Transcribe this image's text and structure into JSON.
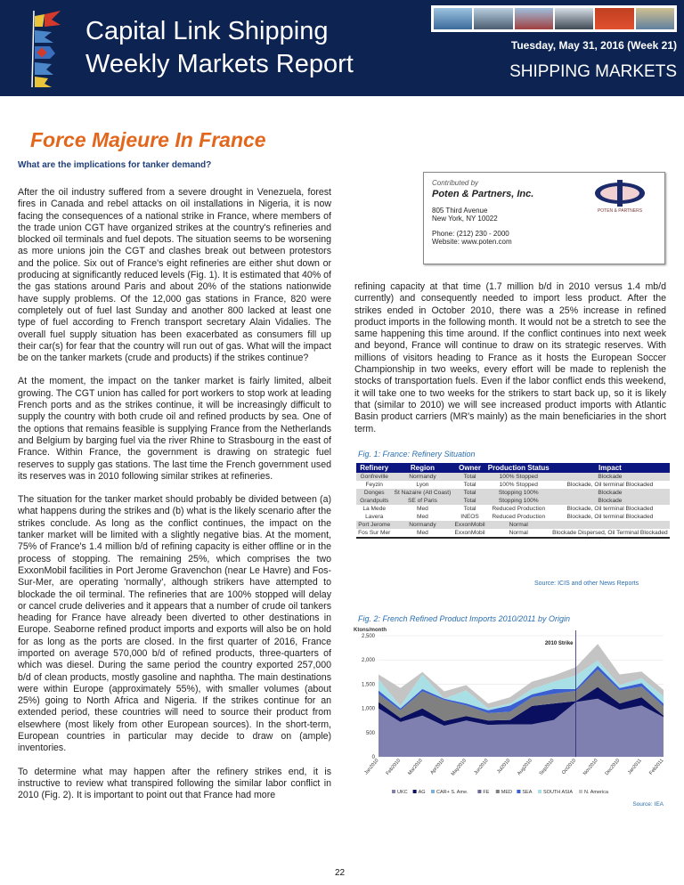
{
  "header": {
    "title_line1": "Capital Link Shipping",
    "title_line2": "Weekly Markets Report",
    "date": "Tuesday, May 31, 2016 (Week 21)",
    "section": "SHIPPING MARKETS"
  },
  "article": {
    "title": "Force Majeure In France",
    "subtitle": "What are the implications for tanker demand?",
    "left_paragraphs": [
      "After the oil industry suffered from a severe drought in Venezuela, forest fires in Canada and rebel attacks on oil installations in Nigeria, it is now facing the consequences of a national strike in France, where members of the trade union CGT have organized strikes at the country's refineries and blocked oil terminals and fuel depots. The situation seems to be worsening as more unions join the CGT and clashes break out between protestors and the police. Six out of France's eight refineries are either shut down or producing at significantly reduced levels (Fig. 1). It is estimated that 40% of the gas stations around Paris and about 20% of the stations nationwide have supply problems. Of the 12,000 gas stations in France, 820 were completely out of fuel last Sunday and another 800 lacked at least one type of fuel according to French transport secretary Alain Vidalies. The overall fuel supply situation has been exacerbated as consumers fill up their car(s) for fear that the country will run out of gas. What will the impact be on the tanker markets (crude and products) if the strikes continue?",
      "At the moment, the impact on the tanker market is fairly limited, albeit growing. The CGT union has called for port workers to stop work at leading French ports and as the strikes continue, it will be increasingly difficult to supply the country with both crude oil and refined products by sea. One of the options that remains feasible is supplying France from the Netherlands and Belgium by barging fuel via the river Rhine to Strasbourg in the east of France. Within France, the government is drawing on strategic fuel reserves to supply gas stations. The last time the French government used its reserves was in 2010 following similar strikes at refineries.",
      "The situation for the tanker market should probably be divided between (a) what happens during the strikes and (b) what is the likely scenario after the strikes conclude. As long as the conflict continues, the impact on the tanker market will be limited with a slightly negative bias. At the moment, 75% of France's 1.4 million b/d of refining capacity is either offline or in the process of stopping. The remaining 25%, which comprises the two ExxonMobil facilities in Port Jerome Gravenchon (near Le Havre) and Fos-Sur-Mer, are operating 'normally', although strikers have attempted to blockade the oil terminal. The refineries that are 100% stopped will delay or cancel crude deliveries and it appears that a number of crude oil tankers heading for France have already been diverted to other destinations in Europe. Seaborne refined product imports and exports will also be on hold for as long as the ports are closed. In the first quarter of 2016, France imported on average 570,000 b/d of refined products, three-quarters of which was diesel. During the same period the country exported 257,000 b/d of clean products, mostly gasoline and naphtha. The main destinations were within Europe (approximately 55%), with smaller volumes (about 25%) going to North Africa and Nigeria. If the strikes continue for an extended period, these countries will need to source their product from elsewhere (most likely from other European sources). In the short-term, European countries in particular may decide to draw on (ample) inventories.",
      "To determine what may happen after the refinery strikes end, it is instructive to review what transpired following the similar labor conflict in 2010 (Fig. 2). It is important to point out that France had more"
    ],
    "right_paragraph": "refining capacity at that time (1.7 million b/d in 2010 versus 1.4 mb/d currently) and consequently needed to import less product. After the strikes ended in October 2010, there was a 25% increase in refined product imports in the following month. It would not be a stretch to see the same happening this time around. If the conflict continues into next week and beyond, France will continue to draw on its strategic reserves. With millions of visitors heading to France as it hosts the European Soccer Championship in two weeks, every effort will be made to replenish the stocks of transportation fuels. Even if the labor conflict ends this weekend, it will take one to two weeks for the strikers to start back up, so it is likely that (similar to 2010) we will see increased product imports with Atlantic Basin product carriers (MR's mainly) as the main beneficiaries in the short term."
  },
  "contributor": {
    "label": "Contributed by",
    "name": "Poten & Partners, Inc.",
    "address1": "805 Third Avenue",
    "address2": "New York, NY 10022",
    "phone": "Phone: (212) 230 - 2000",
    "website": "Website: www.poten.com",
    "logo_text": "POTEN & PARTNERS"
  },
  "fig1": {
    "title": "Fig. 1: France: Refinery Situation",
    "source": "Source: ICIS and other News Reports",
    "headers": [
      "Refinery",
      "Region",
      "Owner",
      "Production Status",
      "Impact"
    ],
    "rows": [
      [
        "Gonfreville",
        "Normandy",
        "Total",
        "100% Stopped",
        "Blockade"
      ],
      [
        "Feyzin",
        "Lyon",
        "Total",
        "100% Stopped",
        "Blockade, Oil terminal Blockaded"
      ],
      [
        "Donges",
        "St Nazaire (Atl Coast)",
        "Total",
        "Stopping 100%",
        "Blockade"
      ],
      [
        "Grandpuits",
        "SE of Paris",
        "Total",
        "Stopping 100%",
        "Blockade"
      ],
      [
        "La Mede",
        "Med",
        "Total",
        "Reduced Production",
        "Blockade, Oil terminal Blockaded"
      ],
      [
        "Lavera",
        "Med",
        "INEOS",
        "Reduced Production",
        "Blockade, Oil terminal Blockaded"
      ],
      [
        "Port Jerome",
        "Normandy",
        "ExxonMobil",
        "Normal",
        ""
      ],
      [
        "Fos Sur Mer",
        "Med",
        "ExxonMobil",
        "Normal",
        "Blockade Dispersed, Oil Terminal Blockaded"
      ]
    ]
  },
  "chart_data": {
    "type": "area",
    "stacked": true,
    "title": "Fig. 2: French Refined Product Imports 2010/2011 by Origin",
    "ylabel": "Ktons/month",
    "ylim": [
      0,
      2500
    ],
    "yticks": [
      "0",
      "500",
      "1,000",
      "1,500",
      "2,000",
      "2,500"
    ],
    "annotation": "2010 Strike",
    "annotation_x": "Oct2010",
    "source": "Source: IEA",
    "legend": "bottom",
    "categories": [
      "Jan2010",
      "Feb2010",
      "Mar2010",
      "Apr2010",
      "May2010",
      "Jun2010",
      "Jul2010",
      "Aug2010",
      "Sep2010",
      "Oct2010",
      "Nov2010",
      "Dec2010",
      "Jan2011",
      "Feb2011"
    ],
    "series": [
      {
        "name": "UKC",
        "color": "#8080b0",
        "values": [
          1000,
          720,
          850,
          640,
          750,
          660,
          670,
          670,
          760,
          1130,
          1200,
          970,
          1060,
          820
        ]
      },
      {
        "name": "AG",
        "color": "#0a0f60",
        "values": [
          130,
          80,
          150,
          100,
          90,
          90,
          90,
          380,
          340,
          20,
          240,
          130,
          170,
          30
        ]
      },
      {
        "name": "CAR+ S. Ame.",
        "color": "#7fb0d8",
        "values": [
          0,
          0,
          0,
          0,
          0,
          0,
          0,
          0,
          0,
          0,
          0,
          0,
          0,
          0
        ]
      },
      {
        "name": "FE",
        "color": "#6a6a9a",
        "values": [
          0,
          0,
          0,
          0,
          0,
          0,
          0,
          0,
          0,
          0,
          0,
          0,
          0,
          0
        ]
      },
      {
        "name": "MED",
        "color": "#808080",
        "values": [
          170,
          160,
          350,
          430,
          220,
          150,
          170,
          180,
          200,
          210,
          360,
          270,
          220,
          190
        ]
      },
      {
        "name": "SEA",
        "color": "#3b5fd0",
        "values": [
          70,
          40,
          50,
          30,
          40,
          60,
          130,
          60,
          100,
          40,
          80,
          50,
          70,
          60
        ]
      },
      {
        "name": "SOUTH ASIA",
        "color": "#a8e0e6",
        "values": [
          230,
          50,
          300,
          0,
          270,
          40,
          40,
          110,
          150,
          280,
          110,
          60,
          100,
          150
        ]
      },
      {
        "name": "N. America",
        "color": "#c4c4c4",
        "values": [
          100,
          370,
          50,
          150,
          110,
          100,
          130,
          150,
          130,
          170,
          340,
          220,
          140,
          130
        ]
      }
    ]
  },
  "page_number": "22"
}
